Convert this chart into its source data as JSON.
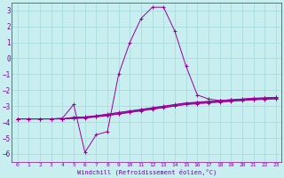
{
  "background_color": "#c8eef0",
  "line_color": "#990099",
  "grid_color": "#aadddd",
  "xlabel": "Windchill (Refroidissement éolien,°C)",
  "xlabel_color": "#7700aa",
  "tick_color": "#7700aa",
  "xlim": [
    -0.5,
    23.5
  ],
  "ylim": [
    -6.5,
    3.5
  ],
  "yticks": [
    3,
    2,
    1,
    0,
    -1,
    -2,
    -3,
    -4,
    -5,
    -6
  ],
  "xticks": [
    0,
    1,
    2,
    3,
    4,
    5,
    6,
    7,
    8,
    9,
    10,
    11,
    12,
    13,
    14,
    15,
    16,
    17,
    18,
    19,
    20,
    21,
    22,
    23
  ],
  "series": [
    {
      "x": [
        0,
        1,
        2,
        3,
        4,
        5,
        6,
        7,
        8,
        9,
        10,
        11,
        12,
        13,
        14,
        15,
        16,
        17,
        18,
        19,
        20,
        21,
        22,
        23
      ],
      "y": [
        -3.8,
        -3.8,
        -3.8,
        -3.8,
        -3.8,
        -3.7,
        -3.68,
        -3.6,
        -3.5,
        -3.4,
        -3.3,
        -3.2,
        -3.1,
        -3.0,
        -2.9,
        -2.8,
        -2.75,
        -2.7,
        -2.65,
        -2.6,
        -2.55,
        -2.5,
        -2.48,
        -2.45
      ]
    },
    {
      "x": [
        0,
        1,
        2,
        3,
        4,
        5,
        6,
        7,
        8,
        9,
        10,
        11,
        12,
        13,
        14,
        15,
        16,
        17,
        18,
        19,
        20,
        21,
        22,
        23
      ],
      "y": [
        -3.8,
        -3.8,
        -3.8,
        -3.8,
        -3.8,
        -3.72,
        -3.68,
        -3.62,
        -3.52,
        -3.42,
        -3.32,
        -3.22,
        -3.12,
        -3.02,
        -2.92,
        -2.82,
        -2.77,
        -2.72,
        -2.67,
        -2.62,
        -2.57,
        -2.52,
        -2.5,
        -2.47
      ]
    },
    {
      "x": [
        0,
        1,
        2,
        3,
        4,
        5,
        6,
        7,
        8,
        9,
        10,
        11,
        12,
        13,
        14,
        15,
        16,
        17,
        18,
        19,
        20,
        21,
        22,
        23
      ],
      "y": [
        -3.8,
        -3.8,
        -3.8,
        -3.8,
        -3.8,
        -3.75,
        -3.72,
        -3.65,
        -3.57,
        -3.47,
        -3.37,
        -3.27,
        -3.17,
        -3.07,
        -2.97,
        -2.87,
        -2.82,
        -2.77,
        -2.72,
        -2.67,
        -2.62,
        -2.57,
        -2.55,
        -2.52
      ]
    },
    {
      "x": [
        0,
        1,
        2,
        3,
        4,
        5,
        6,
        7,
        8,
        9,
        10,
        11,
        12,
        13,
        14,
        15,
        16,
        17,
        18,
        19,
        20,
        21,
        22,
        23
      ],
      "y": [
        -3.8,
        -3.8,
        -3.8,
        -3.8,
        -3.8,
        -3.78,
        -3.75,
        -3.68,
        -3.6,
        -3.5,
        -3.4,
        -3.3,
        -3.2,
        -3.1,
        -3.0,
        -2.9,
        -2.85,
        -2.8,
        -2.75,
        -2.7,
        -2.65,
        -2.6,
        -2.58,
        -2.55
      ]
    }
  ],
  "volatile": {
    "x": [
      0,
      1,
      2,
      3,
      4,
      5,
      6,
      7,
      8,
      9,
      10,
      11,
      12,
      13,
      14,
      15,
      16,
      17,
      18,
      19,
      20,
      21,
      22,
      23
    ],
    "y": [
      -3.8,
      -3.8,
      -3.8,
      -3.8,
      -3.75,
      -2.9,
      -5.9,
      -4.8,
      -4.6,
      -1.0,
      1.0,
      2.5,
      3.2,
      3.2,
      1.7,
      -0.5,
      -2.3,
      -2.55,
      -2.65,
      -2.6,
      -2.6,
      -2.55,
      -2.5,
      -2.45
    ]
  }
}
